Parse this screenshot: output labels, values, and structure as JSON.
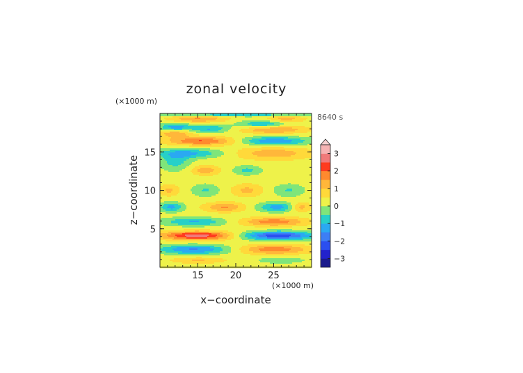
{
  "chart_data": {
    "type": "heatmap",
    "title": "zonal velocity",
    "xlabel": "x−coordinate",
    "ylabel": "z−coordinate",
    "x_unit": "(×1000 m)",
    "y_unit": "(×1000 m)",
    "time_label": "8640 s",
    "xlim": [
      10,
      30
    ],
    "ylim": [
      0,
      20
    ],
    "x_ticks": [
      "15",
      "20",
      "25"
    ],
    "y_ticks": [
      "5",
      "10",
      "15"
    ],
    "colorbar": {
      "ticks": [
        "3",
        "2",
        "1",
        "0",
        "−1",
        "−2",
        "−3"
      ],
      "range": [
        -3.5,
        3.5
      ],
      "levels": [
        {
          "lo": -3.5,
          "color": "#1a1a8c"
        },
        {
          "lo": -3.0,
          "color": "#2222cc"
        },
        {
          "lo": -2.5,
          "color": "#2b4ff0"
        },
        {
          "lo": -2.0,
          "color": "#3d7ef5"
        },
        {
          "lo": -1.5,
          "color": "#2aa9f2"
        },
        {
          "lo": -1.0,
          "color": "#27d0c8"
        },
        {
          "lo": -0.5,
          "color": "#7fe57a"
        },
        {
          "lo": 0.0,
          "color": "#eef24a"
        },
        {
          "lo": 0.5,
          "color": "#ffd93a"
        },
        {
          "lo": 1.0,
          "color": "#ffb73a"
        },
        {
          "lo": 1.5,
          "color": "#ff8a2e"
        },
        {
          "lo": 2.0,
          "color": "#ff3b1f"
        },
        {
          "lo": 2.5,
          "color": "#f07a7a"
        },
        {
          "lo": 3.0,
          "color": "#f6b3b3"
        }
      ]
    },
    "features": [
      {
        "x": 15.0,
        "z": 4.1,
        "value": 2.6,
        "rx": 4.8,
        "rz": 0.55
      },
      {
        "x": 25.5,
        "z": 4.1,
        "value": -2.6,
        "rx": 5.0,
        "rz": 0.55
      },
      {
        "x": 14.5,
        "z": 2.3,
        "value": -1.8,
        "rx": 4.8,
        "rz": 0.6
      },
      {
        "x": 25.0,
        "z": 2.3,
        "value": 1.6,
        "rx": 4.6,
        "rz": 0.6
      },
      {
        "x": 25.0,
        "z": 5.9,
        "value": 1.6,
        "rx": 4.2,
        "rz": 0.55
      },
      {
        "x": 14.5,
        "z": 5.9,
        "value": -1.3,
        "rx": 4.2,
        "rz": 0.55
      },
      {
        "x": 11.5,
        "z": 7.8,
        "value": -1.4,
        "rx": 1.6,
        "rz": 0.6
      },
      {
        "x": 18.5,
        "z": 7.8,
        "value": 1.3,
        "rx": 2.6,
        "rz": 0.6
      },
      {
        "x": 25.5,
        "z": 7.8,
        "value": -1.5,
        "rx": 2.6,
        "rz": 0.6
      },
      {
        "x": 28.5,
        "z": 7.8,
        "value": 1.2,
        "rx": 1.4,
        "rz": 0.6
      },
      {
        "x": 11.2,
        "z": 10.0,
        "value": 0.9,
        "rx": 1.3,
        "rz": 0.7
      },
      {
        "x": 16.0,
        "z": 10.0,
        "value": -0.8,
        "rx": 1.8,
        "rz": 0.8
      },
      {
        "x": 21.5,
        "z": 10.0,
        "value": 0.9,
        "rx": 2.0,
        "rz": 0.8
      },
      {
        "x": 27.0,
        "z": 10.0,
        "value": -0.8,
        "rx": 2.0,
        "rz": 0.8
      },
      {
        "x": 16.0,
        "z": 12.6,
        "value": 1.1,
        "rx": 1.8,
        "rz": 0.6
      },
      {
        "x": 21.5,
        "z": 12.6,
        "value": -0.9,
        "rx": 1.8,
        "rz": 0.6
      },
      {
        "x": 12.0,
        "z": 13.8,
        "value": -1.0,
        "rx": 2.0,
        "rz": 1.2
      },
      {
        "x": 14.0,
        "z": 14.8,
        "value": -1.3,
        "rx": 4.2,
        "rz": 0.6
      },
      {
        "x": 25.0,
        "z": 14.8,
        "value": 1.1,
        "rx": 4.8,
        "rz": 0.8
      },
      {
        "x": 15.5,
        "z": 16.4,
        "value": 1.8,
        "rx": 4.5,
        "rz": 0.55
      },
      {
        "x": 25.0,
        "z": 16.4,
        "value": -1.7,
        "rx": 4.5,
        "rz": 0.55
      },
      {
        "x": 12.0,
        "z": 17.4,
        "value": 1.3,
        "rx": 2.0,
        "rz": 0.5
      },
      {
        "x": 25.0,
        "z": 17.9,
        "value": 1.4,
        "rx": 4.0,
        "rz": 0.5
      },
      {
        "x": 12.0,
        "z": 18.2,
        "value": -1.6,
        "rx": 2.0,
        "rz": 0.5
      },
      {
        "x": 16.5,
        "z": 18.0,
        "value": -1.3,
        "rx": 2.5,
        "rz": 0.5
      },
      {
        "x": 23.5,
        "z": 18.6,
        "value": -1.3,
        "rx": 3.0,
        "rz": 0.5
      },
      {
        "x": 15.0,
        "z": 19.3,
        "value": 1.3,
        "rx": 3.5,
        "rz": 0.45
      },
      {
        "x": 26.5,
        "z": 19.3,
        "value": 1.0,
        "rx": 2.5,
        "rz": 0.45
      },
      {
        "x": 20.0,
        "z": 19.8,
        "value": -1.4,
        "rx": 10.0,
        "rz": 0.2
      },
      {
        "x": 15.0,
        "z": 0.9,
        "value": 0.8,
        "rx": 3.5,
        "rz": 0.4
      },
      {
        "x": 26.0,
        "z": 0.9,
        "value": -0.7,
        "rx": 3.0,
        "rz": 0.4
      }
    ]
  }
}
